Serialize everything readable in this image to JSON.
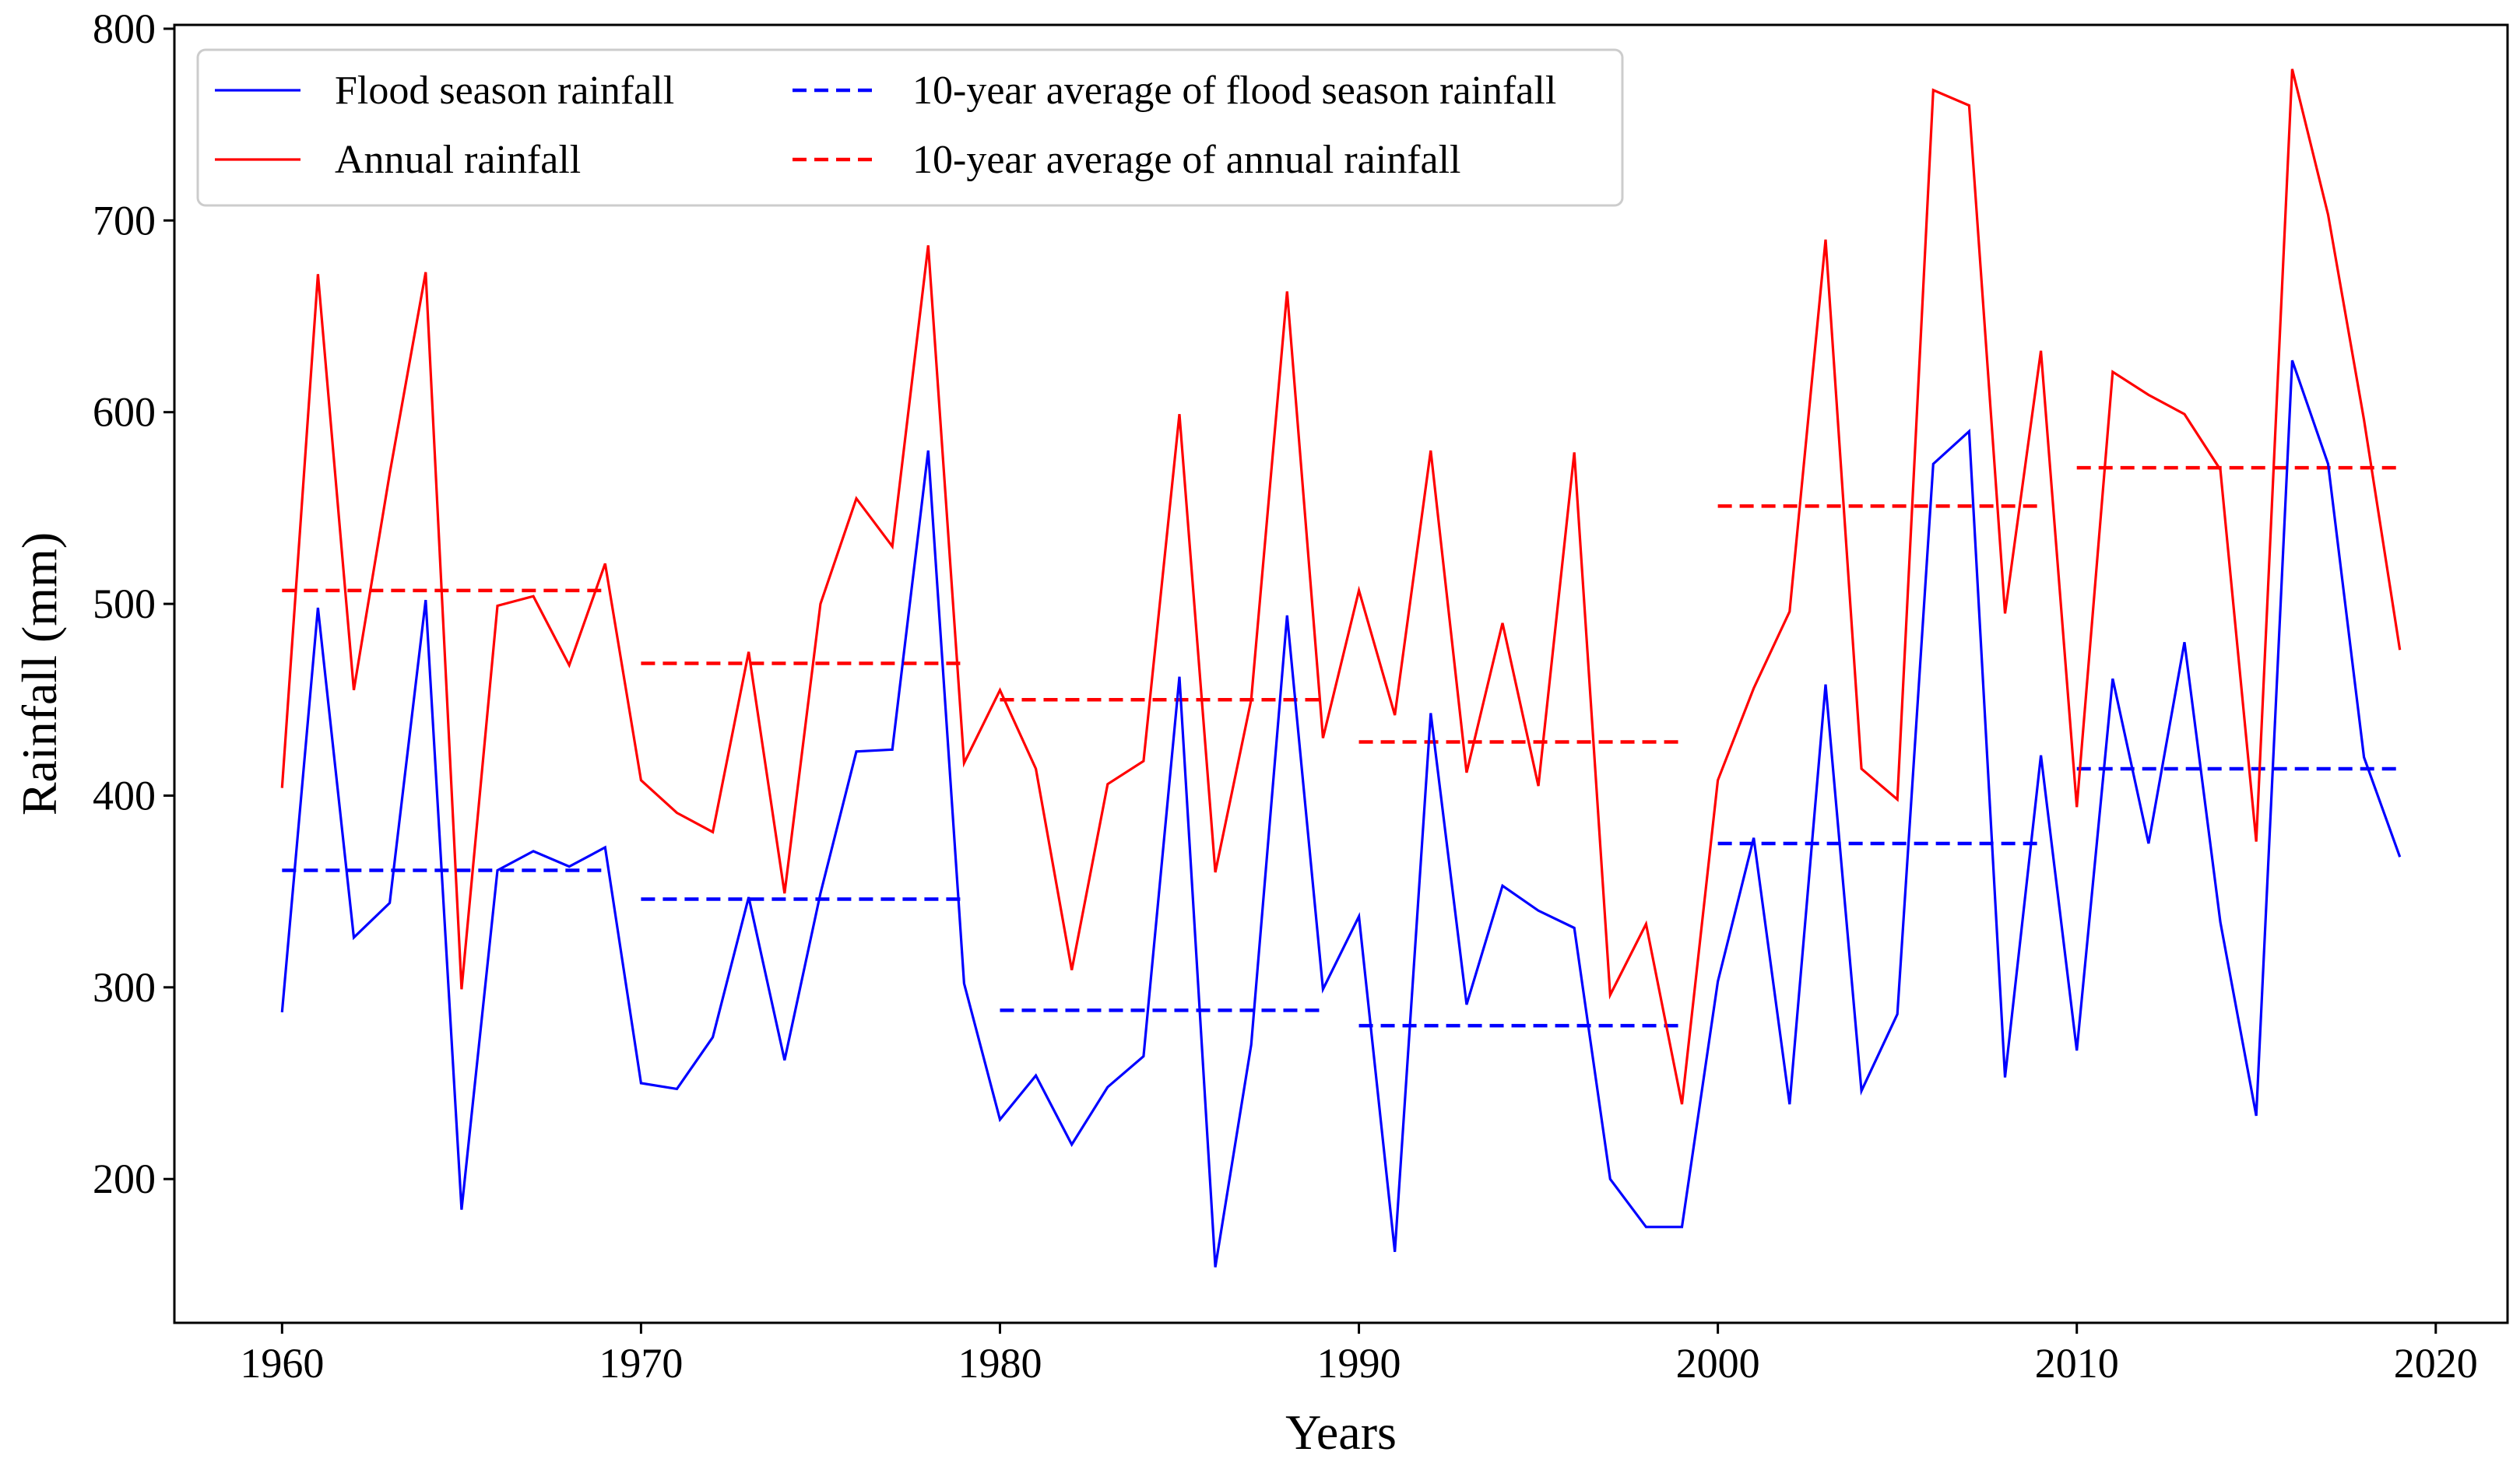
{
  "chart_data": {
    "type": "line",
    "xlabel": "Years",
    "ylabel": "Rainfall (mm)",
    "xlim": [
      1957,
      2022
    ],
    "ylim": [
      125,
      802
    ],
    "x_ticks": [
      1960,
      1970,
      1980,
      1990,
      2000,
      2010,
      2020
    ],
    "y_ticks": [
      200,
      300,
      400,
      500,
      600,
      700,
      800
    ],
    "legend_position": "top-left",
    "years": [
      1960,
      1961,
      1962,
      1963,
      1964,
      1965,
      1966,
      1967,
      1968,
      1969,
      1970,
      1971,
      1972,
      1973,
      1974,
      1975,
      1976,
      1977,
      1978,
      1979,
      1980,
      1981,
      1982,
      1983,
      1984,
      1985,
      1986,
      1987,
      1988,
      1989,
      1990,
      1991,
      1992,
      1993,
      1994,
      1995,
      1996,
      1997,
      1998,
      1999,
      2000,
      2001,
      2002,
      2003,
      2004,
      2005,
      2006,
      2007,
      2008,
      2009,
      2010,
      2011,
      2012,
      2013,
      2014,
      2015,
      2016,
      2017,
      2018,
      2019
    ],
    "series": [
      {
        "name": "Flood season rainfall",
        "color": "#0000ff",
        "style": "solid",
        "values": [
          287,
          498,
          326,
          344,
          502,
          184,
          361,
          371,
          363,
          373,
          250,
          247,
          274,
          347,
          262,
          349,
          423,
          424,
          580,
          302,
          231,
          254,
          218,
          248,
          264,
          462,
          154,
          270,
          494,
          299,
          337,
          162,
          443,
          291,
          353,
          340,
          331,
          200,
          175,
          175,
          303,
          378,
          239,
          458,
          246,
          286,
          573,
          590,
          253,
          421,
          267,
          461,
          375,
          480,
          334,
          233,
          627,
          573,
          420,
          368
        ]
      },
      {
        "name": "Annual rainfall",
        "color": "#ff0000",
        "style": "solid",
        "values": [
          404,
          672,
          455,
          568,
          673,
          299,
          499,
          504,
          468,
          521,
          408,
          391,
          381,
          475,
          349,
          500,
          555,
          530,
          687,
          417,
          455,
          414,
          309,
          406,
          418,
          599,
          360,
          450,
          663,
          430,
          507,
          442,
          580,
          412,
          490,
          405,
          579,
          296,
          333,
          239,
          408,
          456,
          496,
          690,
          414,
          398,
          768,
          760,
          495,
          632,
          394,
          621,
          609,
          599,
          570,
          376,
          779,
          703,
          596,
          476
        ]
      },
      {
        "name": "10-year average of flood season rainfall",
        "color": "#0000ff",
        "style": "dashed",
        "segments": [
          {
            "start": 1960,
            "end": 1969,
            "value": 361
          },
          {
            "start": 1970,
            "end": 1979,
            "value": 346
          },
          {
            "start": 1980,
            "end": 1989,
            "value": 288
          },
          {
            "start": 1990,
            "end": 1999,
            "value": 280
          },
          {
            "start": 2000,
            "end": 2009,
            "value": 375
          },
          {
            "start": 2010,
            "end": 2019,
            "value": 414
          }
        ]
      },
      {
        "name": "10-year average of annual rainfall",
        "color": "#ff0000",
        "style": "dashed",
        "segments": [
          {
            "start": 1960,
            "end": 1969,
            "value": 507
          },
          {
            "start": 1970,
            "end": 1979,
            "value": 469
          },
          {
            "start": 1980,
            "end": 1989,
            "value": 450
          },
          {
            "start": 1990,
            "end": 1999,
            "value": 428
          },
          {
            "start": 2000,
            "end": 2009,
            "value": 551
          },
          {
            "start": 2010,
            "end": 2019,
            "value": 571
          }
        ]
      }
    ],
    "legend": [
      {
        "label": "Flood season rainfall",
        "color": "#0000ff",
        "style": "solid"
      },
      {
        "label": "Annual rainfall",
        "color": "#ff0000",
        "style": "solid"
      },
      {
        "label": "10-year average of flood season rainfall",
        "color": "#0000ff",
        "style": "dashed"
      },
      {
        "label": "10-year average of annual rainfall",
        "color": "#ff0000",
        "style": "dashed"
      }
    ]
  }
}
